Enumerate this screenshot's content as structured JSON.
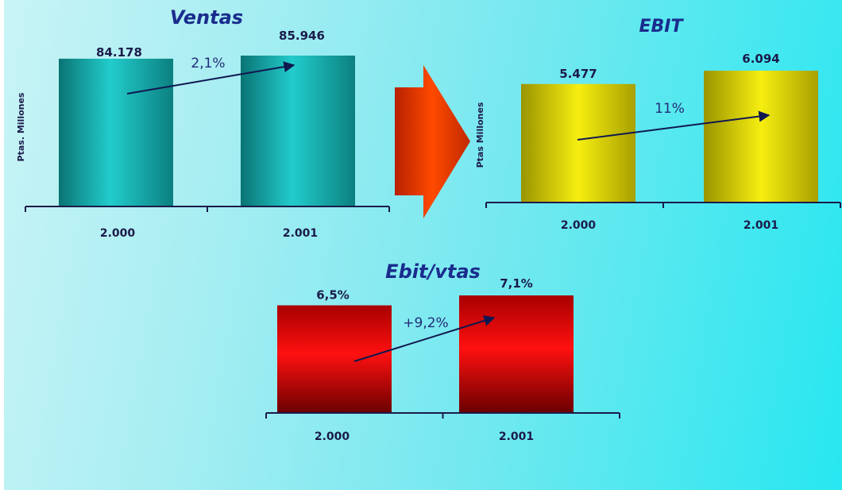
{
  "colors": {
    "ventas_bar": "#14a8a8",
    "ebit_bar": "#f0e000",
    "margin_bar": "#cc0000",
    "axis": "#1b1b4a",
    "title": "#1a2c8c",
    "arrow_shape": "#e83a00"
  },
  "chart_data": [
    {
      "id": "ventas",
      "type": "bar",
      "title": "Ventas",
      "ylabel": "Ptas. Millones",
      "categories": [
        "2.000",
        "2.001"
      ],
      "values": [
        84178,
        85946
      ],
      "value_labels": [
        "84.178",
        "85.946"
      ],
      "change_label": "2,1%",
      "ylim": [
        0,
        90000
      ]
    },
    {
      "id": "ebit",
      "type": "bar",
      "title": "EBIT",
      "ylabel": "Ptas Millones",
      "categories": [
        "2.000",
        "2.001"
      ],
      "values": [
        5477,
        6094
      ],
      "value_labels": [
        "5.477",
        "6.094"
      ],
      "change_label": "11%",
      "ylim": [
        0,
        7000
      ]
    },
    {
      "id": "ebit_vtas",
      "type": "bar",
      "title": "Ebit/vtas",
      "ylabel": "",
      "categories": [
        "2.000",
        "2.001"
      ],
      "values": [
        6.5,
        7.1
      ],
      "value_labels": [
        "6,5%",
        "7,1%"
      ],
      "change_label": "+9,2%",
      "ylim": [
        0,
        7.5
      ]
    }
  ]
}
